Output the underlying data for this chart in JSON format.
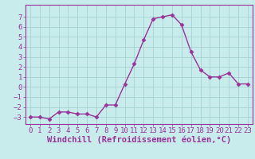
{
  "x": [
    0,
    1,
    2,
    3,
    4,
    5,
    6,
    7,
    8,
    9,
    10,
    11,
    12,
    13,
    14,
    15,
    16,
    17,
    18,
    19,
    20,
    21,
    22,
    23
  ],
  "y": [
    -3,
    -3,
    -3.2,
    -2.5,
    -2.5,
    -2.7,
    -2.7,
    -3,
    -1.8,
    -1.8,
    0.3,
    2.3,
    4.7,
    6.8,
    7.0,
    7.2,
    6.2,
    3.5,
    1.7,
    1.0,
    1.0,
    1.4,
    0.3,
    0.3
  ],
  "line_color": "#993399",
  "marker": "D",
  "marker_size": 2.5,
  "bg_color": "#c8ecec",
  "grid_color": "#a0cccc",
  "xlabel": "Windchill (Refroidissement éolien,°C)",
  "xlim": [
    -0.5,
    23.5
  ],
  "ylim": [
    -3.7,
    8.2
  ],
  "yticks": [
    -3,
    -2,
    -1,
    0,
    1,
    2,
    3,
    4,
    5,
    6,
    7
  ],
  "xticks": [
    0,
    1,
    2,
    3,
    4,
    5,
    6,
    7,
    8,
    9,
    10,
    11,
    12,
    13,
    14,
    15,
    16,
    17,
    18,
    19,
    20,
    21,
    22,
    23
  ],
  "tick_color": "#993399",
  "tick_fontsize": 6.5,
  "xlabel_fontsize": 7.5,
  "line_width": 1.0,
  "spine_color": "#993399"
}
